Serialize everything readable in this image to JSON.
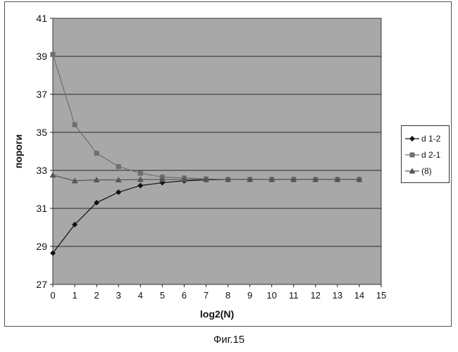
{
  "chart_data": {
    "type": "line",
    "xlabel": "log2(N)",
    "ylabel": "пороги",
    "xlim": [
      0,
      15
    ],
    "ylim": [
      27,
      41
    ],
    "xticks": [
      0,
      1,
      2,
      3,
      4,
      5,
      6,
      7,
      8,
      9,
      10,
      11,
      12,
      13,
      14,
      15
    ],
    "yticks": [
      27,
      29,
      31,
      33,
      35,
      37,
      39,
      41
    ],
    "grid": true,
    "legend_position": "right",
    "plot_background": "#a8a8a8",
    "x": [
      0,
      1,
      2,
      3,
      4,
      5,
      6,
      7,
      8,
      9,
      10,
      11,
      12,
      13,
      14
    ],
    "series": [
      {
        "name": "d 1-2",
        "marker": "diamond",
        "color": "#111111",
        "values": [
          28.65,
          30.15,
          31.3,
          31.85,
          32.2,
          32.35,
          32.45,
          32.5,
          32.52,
          32.52,
          32.52,
          32.52,
          32.52,
          32.52,
          32.52
        ]
      },
      {
        "name": "d 2-1",
        "marker": "square",
        "color": "#6e6e6e",
        "values": [
          39.1,
          35.4,
          33.9,
          33.2,
          32.85,
          32.65,
          32.6,
          32.55,
          32.52,
          32.52,
          32.52,
          32.52,
          32.52,
          32.52,
          32.52
        ]
      },
      {
        "name": "(8)",
        "marker": "triangle",
        "color": "#555555",
        "values": [
          32.75,
          32.45,
          32.5,
          32.5,
          32.52,
          32.52,
          32.52,
          32.52,
          32.52,
          32.52,
          32.52,
          32.52,
          32.52,
          32.52,
          32.52
        ]
      }
    ]
  },
  "caption": "Фиг.15"
}
